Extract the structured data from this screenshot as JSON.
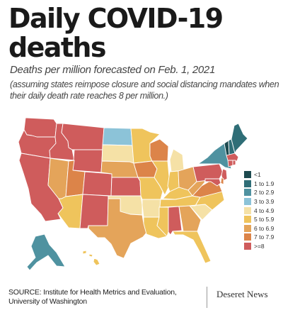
{
  "title": "Daily COVID-19 deaths",
  "subtitle": "Deaths per million forecasted on Feb. 1, 2021",
  "note": "(assuming states reimpose closure and social distancing mandates when their daily death rate reaches 8 per million.)",
  "legend": [
    {
      "label": "<1",
      "color": "#1d4a4f"
    },
    {
      "label": "1 to 1.9",
      "color": "#2f6e77"
    },
    {
      "label": "2 to 2.9",
      "color": "#4f92a0"
    },
    {
      "label": "3 to 3.9",
      "color": "#8cc3d8"
    },
    {
      "label": "4 to 4.9",
      "color": "#f5e1a6"
    },
    {
      "label": "5 to 5.9",
      "color": "#efc45c"
    },
    {
      "label": "6 to 6.9",
      "color": "#e4a45a"
    },
    {
      "label": "7 to 7.9",
      "color": "#dc8449"
    },
    {
      "label": ">=8",
      "color": "#cf5c5c"
    }
  ],
  "states": [
    {
      "name": "Washington",
      "bin": 8
    },
    {
      "name": "Oregon",
      "bin": 8
    },
    {
      "name": "California",
      "bin": 8
    },
    {
      "name": "Idaho",
      "bin": 8
    },
    {
      "name": "Nevada",
      "bin": 6
    },
    {
      "name": "Montana",
      "bin": 8
    },
    {
      "name": "Wyoming",
      "bin": 8
    },
    {
      "name": "Utah",
      "bin": 7
    },
    {
      "name": "Arizona",
      "bin": 5
    },
    {
      "name": "Colorado",
      "bin": 8
    },
    {
      "name": "New Mexico",
      "bin": 8
    },
    {
      "name": "North Dakota",
      "bin": 3
    },
    {
      "name": "South Dakota",
      "bin": 4
    },
    {
      "name": "Nebraska",
      "bin": 6
    },
    {
      "name": "Kansas",
      "bin": 8
    },
    {
      "name": "Oklahoma",
      "bin": 4
    },
    {
      "name": "Texas",
      "bin": 6
    },
    {
      "name": "Minnesota",
      "bin": 5
    },
    {
      "name": "Iowa",
      "bin": 7
    },
    {
      "name": "Missouri",
      "bin": 5
    },
    {
      "name": "Arkansas",
      "bin": 4
    },
    {
      "name": "Louisiana",
      "bin": 5
    },
    {
      "name": "Wisconsin",
      "bin": 7
    },
    {
      "name": "Illinois",
      "bin": 5
    },
    {
      "name": "Michigan",
      "bin": 4
    },
    {
      "name": "Indiana",
      "bin": 5
    },
    {
      "name": "Ohio",
      "bin": 6
    },
    {
      "name": "Kentucky",
      "bin": 5
    },
    {
      "name": "Tennessee",
      "bin": 5
    },
    {
      "name": "Mississippi",
      "bin": 5
    },
    {
      "name": "Alabama",
      "bin": 8
    },
    {
      "name": "Georgia",
      "bin": 6
    },
    {
      "name": "Florida",
      "bin": 5
    },
    {
      "name": "South Carolina",
      "bin": 4
    },
    {
      "name": "North Carolina",
      "bin": 5
    },
    {
      "name": "Virginia",
      "bin": 7
    },
    {
      "name": "West Virginia",
      "bin": 6
    },
    {
      "name": "Pennsylvania",
      "bin": 8
    },
    {
      "name": "New York",
      "bin": 2
    },
    {
      "name": "Vermont",
      "bin": 0
    },
    {
      "name": "New Hampshire",
      "bin": 1
    },
    {
      "name": "Maine",
      "bin": 1
    },
    {
      "name": "Massachusetts",
      "bin": 8
    },
    {
      "name": "Connecticut",
      "bin": 8
    },
    {
      "name": "Rhode Island",
      "bin": 8
    },
    {
      "name": "New Jersey",
      "bin": 8
    },
    {
      "name": "Delaware",
      "bin": 7
    },
    {
      "name": "Maryland",
      "bin": 8
    },
    {
      "name": "Alaska",
      "bin": 2
    },
    {
      "name": "Hawaii",
      "bin": 5
    }
  ],
  "source": "SOURCE: Institute for Health Metrics and Evaluation, University of Washington",
  "logo": "Deseret News"
}
